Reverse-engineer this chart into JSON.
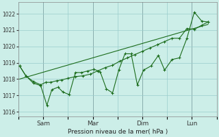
{
  "background_color": "#cceee8",
  "grid_color": "#99cccc",
  "line_color": "#1a6b1a",
  "ylabel": "Pression niveau de la mer( hPa )",
  "ylim": [
    1015.7,
    1022.7
  ],
  "yticks": [
    1016,
    1017,
    1018,
    1019,
    1020,
    1021,
    1022
  ],
  "xlim": [
    0,
    8
  ],
  "xtick_labels": [
    "",
    "Sam",
    "",
    "Mar",
    "",
    "Dim",
    "",
    "Lun",
    ""
  ],
  "xtick_positions": [
    0,
    1,
    2,
    3,
    4,
    5,
    6,
    7,
    8
  ],
  "vline_positions": [
    1,
    3,
    5,
    7
  ],
  "series1_x": [
    0.05,
    0.3,
    0.6,
    0.9,
    1.1,
    1.3,
    1.55,
    1.75,
    2.0,
    2.3,
    2.6,
    2.9,
    3.2,
    3.5,
    3.8,
    4.1,
    4.4,
    4.7,
    5.0,
    5.3,
    5.6,
    5.9,
    6.2,
    6.5,
    6.8,
    7.1,
    7.4,
    7.65
  ],
  "series1_y": [
    1018.8,
    1018.2,
    1017.85,
    1017.65,
    1017.8,
    1017.8,
    1017.9,
    1017.95,
    1018.05,
    1018.15,
    1018.2,
    1018.3,
    1018.5,
    1018.7,
    1018.85,
    1019.1,
    1019.3,
    1019.5,
    1019.7,
    1019.9,
    1020.1,
    1020.3,
    1020.5,
    1020.5,
    1021.1,
    1021.05,
    1021.3,
    1021.5
  ],
  "series2_x": [
    0.05,
    0.3,
    0.6,
    0.9,
    1.15,
    1.35,
    1.6,
    1.8,
    2.05,
    2.3,
    2.55,
    2.8,
    3.05,
    3.3,
    3.55,
    3.8,
    4.05,
    4.3,
    4.55,
    4.8,
    5.05,
    5.35,
    5.65,
    5.9,
    6.2,
    6.5,
    6.8,
    7.1,
    7.4,
    7.65
  ],
  "series2_y": [
    1018.8,
    1018.2,
    1017.75,
    1017.6,
    1016.4,
    1017.35,
    1017.5,
    1017.2,
    1017.05,
    1018.4,
    1018.4,
    1018.5,
    1018.6,
    1018.45,
    1017.4,
    1017.15,
    1018.55,
    1019.55,
    1019.55,
    1017.65,
    1018.55,
    1018.8,
    1019.45,
    1018.55,
    1019.2,
    1019.3,
    1020.5,
    1022.1,
    1021.55,
    1021.5
  ],
  "trend_x": [
    0.05,
    7.65
  ],
  "trend_y": [
    1018.0,
    1021.35
  ]
}
